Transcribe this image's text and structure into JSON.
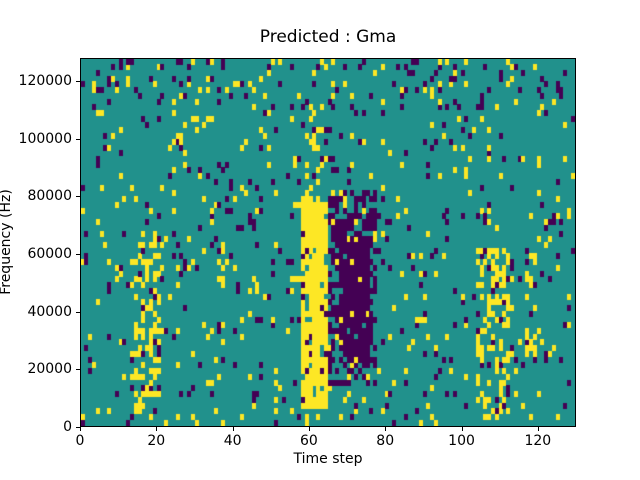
{
  "figure": {
    "background": "#ffffff"
  },
  "chart_data": {
    "type": "heatmap",
    "title": "Predicted : Gma",
    "xlabel": "Time step",
    "ylabel": "Frequency (Hz)",
    "xlim": [
      0,
      130
    ],
    "ylim": [
      0,
      128000
    ],
    "x_ticks": [
      0,
      20,
      40,
      60,
      80,
      100,
      120
    ],
    "y_ticks": [
      0,
      20000,
      40000,
      60000,
      80000,
      100000,
      120000
    ],
    "grid": false,
    "legend": null,
    "cols": 130,
    "rows": 64,
    "cell_freq_hz": 2000,
    "value_colors": {
      "-1": "#440154",
      "0": "#21918c",
      "1": "#fde725"
    },
    "base_cell_value": 0,
    "pattern": {
      "seed": 7,
      "background_noise": {
        "p_yellow": 0.045,
        "p_purple": 0.035
      },
      "features": [
        {
          "name": "yellow-band-main",
          "x": [
            58,
            65
          ],
          "freq": [
            6000,
            80000
          ],
          "p_yellow": 0.85,
          "p_purple": 0.02
        },
        {
          "name": "yellow-band-upper",
          "x": [
            59,
            64
          ],
          "freq": [
            80000,
            112000
          ],
          "p_yellow": 0.3,
          "p_purple": 0.05
        },
        {
          "name": "purple-band",
          "x": [
            65,
            78
          ],
          "freq": [
            14000,
            82000
          ],
          "p_yellow": 0.05,
          "p_purple": 0.5
        },
        {
          "name": "purple-core",
          "x": [
            68,
            76
          ],
          "freq": [
            22000,
            66000
          ],
          "p_yellow": 0.03,
          "p_purple": 0.88
        },
        {
          "name": "yellow-cluster-left",
          "x": [
            13,
            21
          ],
          "freq": [
            4000,
            68000
          ],
          "p_yellow": 0.32,
          "p_purple": 0.06
        },
        {
          "name": "yellow-cluster-right",
          "x": [
            104,
            114
          ],
          "freq": [
            2000,
            62000
          ],
          "p_yellow": 0.3,
          "p_purple": 0.08
        },
        {
          "name": "yellow-streak-x118",
          "x": [
            117,
            120
          ],
          "freq": [
            18000,
            60000
          ],
          "p_yellow": 0.25,
          "p_purple": 0.05
        },
        {
          "name": "top-speckle",
          "x": [
            0,
            130
          ],
          "freq": [
            110000,
            128000
          ],
          "p_yellow": 0.06,
          "p_purple": 0.08
        }
      ]
    }
  }
}
